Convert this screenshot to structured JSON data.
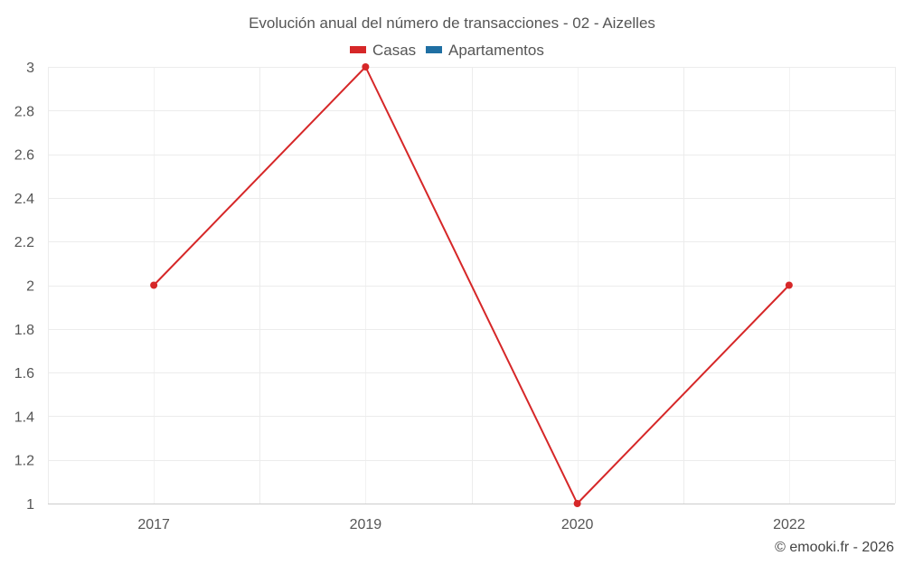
{
  "chart_data": {
    "type": "line",
    "title": "Evolución anual del número de transacciones - 02 - Aizelles",
    "categories": [
      "2017",
      "2019",
      "2020",
      "2022"
    ],
    "y_ticks": [
      "1",
      "1.2",
      "1.4",
      "1.6",
      "1.8",
      "2",
      "2.2",
      "2.4",
      "2.6",
      "2.8",
      "3"
    ],
    "ylim": [
      1,
      3
    ],
    "grid": true,
    "legend_position": "top-center",
    "series": [
      {
        "name": "Casas",
        "color": "#d62728",
        "values": [
          2,
          3,
          1,
          2
        ]
      },
      {
        "name": "Apartamentos",
        "color": "#1f6fa3",
        "values": [
          null,
          null,
          null,
          null
        ]
      }
    ],
    "credit": "© emooki.fr - 2026"
  }
}
